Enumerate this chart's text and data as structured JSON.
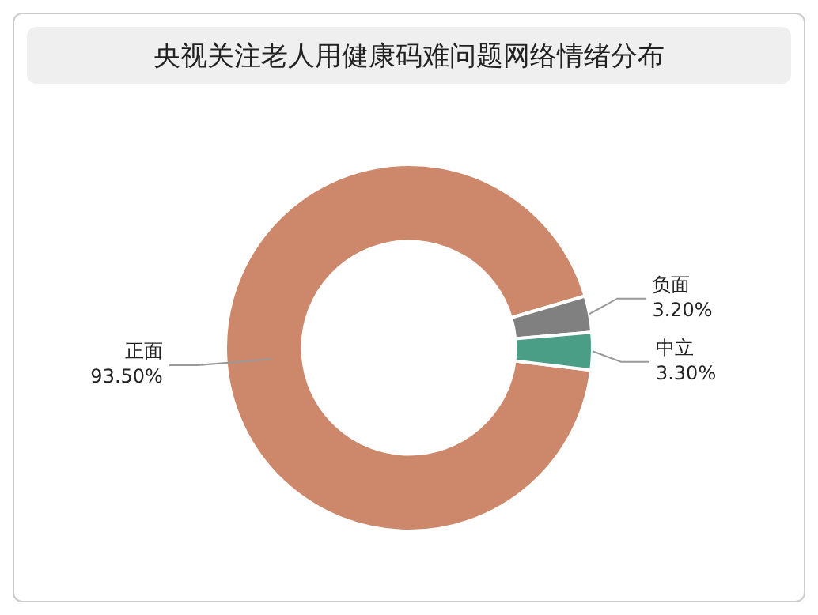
{
  "chart_data": {
    "type": "donut",
    "title": "央视关注老人用健康码难问题网络情绪分布",
    "categories": [
      "正面",
      "负面",
      "中立"
    ],
    "values": [
      93.5,
      3.2,
      3.3
    ],
    "value_labels": [
      "93.50%",
      "3.20%",
      "3.30%"
    ],
    "colors": [
      "#cd876a",
      "#808080",
      "#4a9e85"
    ],
    "legend": false
  }
}
